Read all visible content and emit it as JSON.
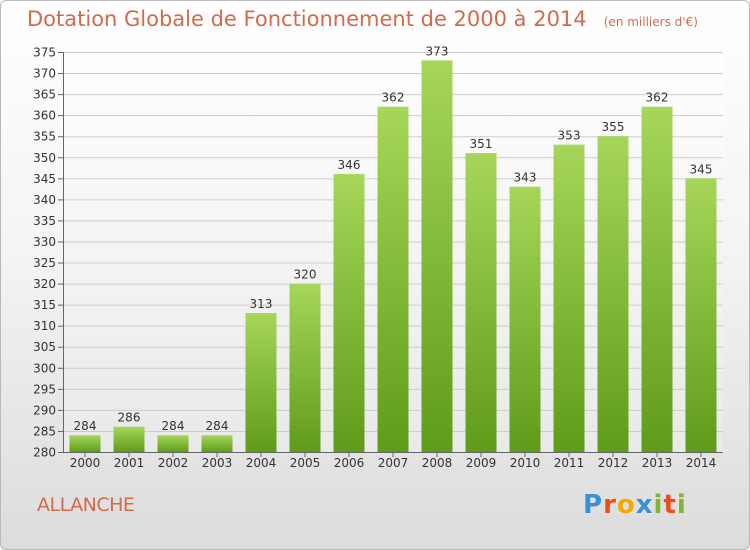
{
  "title": "Dotation Globale de Fonctionnement de 2000 à 2014",
  "subtitle": "(en milliers d'€)",
  "commune": "ALLANCHE",
  "logo": {
    "letters": [
      "P",
      "r",
      "o",
      "x",
      "i",
      "t",
      "i"
    ],
    "colors": [
      "#3a8fd6",
      "#e94e1b",
      "#f2a900",
      "#3a8fd6",
      "#7cb82f",
      "#e94e1b",
      "#7cb82f"
    ]
  },
  "colors": {
    "bar_top": "#a6d65a",
    "bar_bottom": "#5e9c19",
    "title": "#d46a4c",
    "grid": "#cccccc"
  },
  "chart_data": {
    "type": "bar",
    "title": "Dotation Globale de Fonctionnement de 2000 à 2014",
    "subtitle": "(en milliers d'€)",
    "categories": [
      "2000",
      "2001",
      "2002",
      "2003",
      "2004",
      "2005",
      "2006",
      "2007",
      "2008",
      "2009",
      "2010",
      "2011",
      "2012",
      "2013",
      "2014"
    ],
    "values": [
      284,
      286,
      284,
      284,
      313,
      320,
      346,
      362,
      373,
      351,
      343,
      353,
      355,
      362,
      345
    ],
    "ylim": [
      280,
      375
    ],
    "yticks": [
      280,
      285,
      290,
      295,
      300,
      305,
      310,
      315,
      320,
      325,
      330,
      335,
      340,
      345,
      350,
      355,
      360,
      365,
      370,
      375
    ],
    "grid": true,
    "xlabel": "",
    "ylabel": ""
  }
}
